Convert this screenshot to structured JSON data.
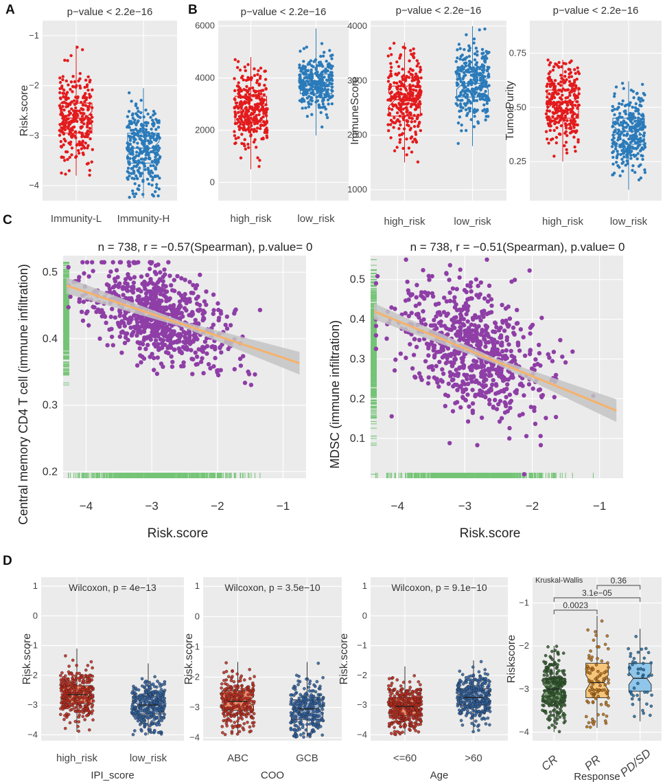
{
  "colors": {
    "panel_bg": "#ebebeb",
    "grid": "#ffffff",
    "red": "#e31a1c",
    "blue": "#2b7bba",
    "purple": "#8e3ea6",
    "green": "#74c476",
    "fit_line": "#f6b26b",
    "ci_band": "#c4c4c4",
    "salmon_box": "#f08a6b",
    "slate_box": "#a3b4d2",
    "green_box": "#7fa07a",
    "orange_box": "#f7c57a",
    "sky_box": "#8fc6ea"
  },
  "panel_letters": [
    "A",
    "B",
    "C",
    "D"
  ],
  "chart_data": [
    {
      "panel": "A",
      "type": "boxplot",
      "title": "p−value < 2.2e−16",
      "xlabel": "",
      "ylabel": "Risk.score",
      "categories": [
        "Immunity-L",
        "Immunity-H"
      ],
      "ylim": [
        -4.3,
        -0.7
      ],
      "yticks": [
        -4,
        -3,
        -2,
        -1
      ],
      "yticklabels": [
        "−4",
        "−3",
        "−2",
        "−1"
      ],
      "groups": [
        {
          "name": "Immunity-L",
          "q1": -2.95,
          "median": -2.65,
          "q3": -2.35,
          "min": -3.8,
          "max": -1.2,
          "n": 280
        },
        {
          "name": "Immunity-H",
          "q1": -3.55,
          "median": -3.25,
          "q3": -2.95,
          "min": -4.25,
          "max": -2.05,
          "n": 320
        }
      ]
    },
    {
      "panel": "B1",
      "type": "boxplot",
      "title": "p−value < 2.2e−16",
      "xlabel": "",
      "ylabel": "",
      "categories": [
        "high_risk",
        "low_risk"
      ],
      "ylim": [
        -700,
        6200
      ],
      "yticks": [
        0,
        2000,
        4000,
        6000
      ],
      "yticklabels": [
        "0",
        "2000",
        "4000",
        "6000"
      ],
      "groups": [
        {
          "name": "high_risk",
          "q1": 2300,
          "median": 2800,
          "q3": 3300,
          "min": 500,
          "max": 4800,
          "n": 300
        },
        {
          "name": "low_risk",
          "q1": 3400,
          "median": 3800,
          "q3": 4150,
          "min": 1800,
          "max": 5900,
          "n": 300
        }
      ]
    },
    {
      "panel": "B2",
      "type": "boxplot",
      "title": "p−value < 2.2e−16",
      "xlabel": "",
      "ylabel": "ImmuneScore",
      "categories": [
        "high_risk",
        "low_risk"
      ],
      "ylim": [
        800,
        4100
      ],
      "yticks": [
        1000,
        2000,
        3000,
        4000
      ],
      "yticklabels": [
        "1000",
        "2000",
        "3000",
        "4000"
      ],
      "groups": [
        {
          "name": "high_risk",
          "q1": 2350,
          "median": 2650,
          "q3": 2900,
          "min": 1500,
          "max": 3700,
          "n": 300
        },
        {
          "name": "low_risk",
          "q1": 2700,
          "median": 2950,
          "q3": 3200,
          "min": 1800,
          "max": 4000,
          "n": 300
        }
      ]
    },
    {
      "panel": "B3",
      "type": "boxplot",
      "title": "p−value < 2.2e−16",
      "xlabel": "",
      "ylabel": "TumorPurity",
      "categories": [
        "high_risk",
        "low_risk"
      ],
      "ylim": [
        0.07,
        0.9
      ],
      "yticks": [
        0.25,
        0.5,
        0.75
      ],
      "yticklabels": [
        "0.25",
        "0.50",
        "0.75"
      ],
      "groups": [
        {
          "name": "high_risk",
          "q1": 0.45,
          "median": 0.52,
          "q3": 0.58,
          "min": 0.25,
          "max": 0.72,
          "n": 300
        },
        {
          "name": "low_risk",
          "q1": 0.33,
          "median": 0.39,
          "q3": 0.45,
          "min": 0.12,
          "max": 0.62,
          "n": 300
        }
      ]
    },
    {
      "panel": "C1",
      "type": "scatter",
      "title": "n = 738, r = −0.57(Spearman), p.value= 0",
      "xlabel": "Risk.score",
      "ylabel": "Central memory CD4 T cell (immune infiltration)",
      "xlim": [
        -4.35,
        -0.65
      ],
      "ylim": [
        0.19,
        0.525
      ],
      "xticks": [
        -4,
        -3,
        -2,
        -1
      ],
      "xticklabels": [
        "−4",
        "−3",
        "−2",
        "−1"
      ],
      "yticks": [
        0.2,
        0.3,
        0.4,
        0.5
      ],
      "yticklabels": [
        "0.2",
        "0.3",
        "0.4",
        "0.5"
      ],
      "n": 738,
      "x_center": -2.85,
      "x_sd": 0.55,
      "fit": {
        "x": [
          -4.3,
          -0.75
        ],
        "y": [
          0.48,
          0.363
        ]
      },
      "resid_sd": 0.032
    },
    {
      "panel": "C2",
      "type": "scatter",
      "title": "n = 738, r = −0.51(Spearman), p.value= 0",
      "xlabel": "Risk.score",
      "ylabel": "MDSC (immune infiltration)",
      "xlim": [
        -4.4,
        -0.65
      ],
      "ylim": [
        0.0,
        0.56
      ],
      "xticks": [
        -4,
        -3,
        -2,
        -1
      ],
      "xticklabels": [
        "−4",
        "−3",
        "−2",
        "−1"
      ],
      "yticks": [
        0.1,
        0.2,
        0.3,
        0.4,
        0.5
      ],
      "yticklabels": [
        "0.1",
        "0.2",
        "0.3",
        "0.4",
        "0.5"
      ],
      "n": 738,
      "x_center": -2.9,
      "x_sd": 0.55,
      "fit": {
        "x": [
          -4.35,
          -0.75
        ],
        "y": [
          0.42,
          0.17
        ]
      },
      "resid_sd": 0.075
    },
    {
      "panel": "D1",
      "type": "boxplot",
      "title": "Wilcoxon, p = 4e−13",
      "xlabel": "IPI_score",
      "ylabel": "Risk.score",
      "categories": [
        "high_risk",
        "low_risk"
      ],
      "ylim": [
        -4.2,
        1.3
      ],
      "yticks": [
        -4,
        -3,
        -2,
        -1,
        0,
        1
      ],
      "yticklabels": [
        "−4",
        "−3",
        "−2",
        "−1",
        "0",
        "1"
      ],
      "groups": [
        {
          "name": "high_risk",
          "q1": -2.95,
          "median": -2.65,
          "q3": -2.35,
          "min": -3.9,
          "max": -1.1,
          "n": 300
        },
        {
          "name": "low_risk",
          "q1": -3.3,
          "median": -3.0,
          "q3": -2.7,
          "min": -4.0,
          "max": -1.6,
          "n": 300
        }
      ]
    },
    {
      "panel": "D2",
      "type": "boxplot",
      "title": "Wilcoxon, p = 3.5e−10",
      "xlabel": "COO",
      "ylabel": "Risk.score",
      "categories": [
        "ABC",
        "GCB"
      ],
      "ylim": [
        -4.1,
        1.3
      ],
      "yticks": [
        -4,
        -3,
        -2,
        -1,
        0,
        1
      ],
      "yticklabels": [
        "−4",
        "−3",
        "−2",
        "−1",
        "0",
        "1"
      ],
      "groups": [
        {
          "name": "ABC",
          "q1": -3.1,
          "median": -2.8,
          "q3": -2.45,
          "min": -3.9,
          "max": -1.5,
          "n": 250
        },
        {
          "name": "GCB",
          "q1": -3.4,
          "median": -3.05,
          "q3": -2.75,
          "min": -4.0,
          "max": -1.5,
          "n": 250
        }
      ]
    },
    {
      "panel": "D3",
      "type": "boxplot",
      "title": "Wilcoxon, p = 9.1e−10",
      "xlabel": "Age",
      "ylabel": "Risk.score",
      "categories": [
        "<=60",
        ">60"
      ],
      "ylim": [
        -4.2,
        1.3
      ],
      "yticks": [
        -4,
        -3,
        -2,
        -1,
        0,
        1
      ],
      "yticklabels": [
        "−4",
        "−3",
        "−2",
        "−1",
        "0",
        "1"
      ],
      "groups": [
        {
          "name": "<=60",
          "q1": -3.35,
          "median": -3.05,
          "q3": -2.75,
          "min": -4.0,
          "max": -1.7,
          "n": 350
        },
        {
          "name": ">60",
          "q1": -3.0,
          "median": -2.75,
          "q3": -2.45,
          "min": -3.9,
          "max": -1.5,
          "n": 300
        }
      ]
    },
    {
      "panel": "D4",
      "type": "boxplot",
      "title": "Kruskal-Wallis",
      "xlabel": "Response",
      "ylabel": "Riskscore",
      "categories": [
        "CR",
        "PR",
        "PD/SD"
      ],
      "ylim": [
        -4.2,
        -0.4
      ],
      "yticks": [
        -4,
        -3,
        -2,
        -1
      ],
      "yticklabels": [
        "−4",
        "−3",
        "−2",
        "−1"
      ],
      "groups": [
        {
          "name": "CR",
          "q1": -3.3,
          "median": -3.0,
          "q3": -2.75,
          "min": -4.0,
          "max": -2.0,
          "n": 230
        },
        {
          "name": "PR",
          "q1": -3.2,
          "median": -2.85,
          "q3": -2.4,
          "min": -3.9,
          "max": -1.3,
          "n": 90
        },
        {
          "name": "PD/SD",
          "q1": -3.05,
          "median": -2.75,
          "q3": -2.4,
          "min": -3.75,
          "max": -1.6,
          "n": 45
        }
      ],
      "comparisons": [
        {
          "label": "0.0023",
          "from": "CR",
          "to": "PR"
        },
        {
          "label": "3.1e−05",
          "from": "CR",
          "to": "PD/SD"
        },
        {
          "label": "0.36",
          "from": "PR",
          "to": "PD/SD"
        }
      ]
    }
  ]
}
